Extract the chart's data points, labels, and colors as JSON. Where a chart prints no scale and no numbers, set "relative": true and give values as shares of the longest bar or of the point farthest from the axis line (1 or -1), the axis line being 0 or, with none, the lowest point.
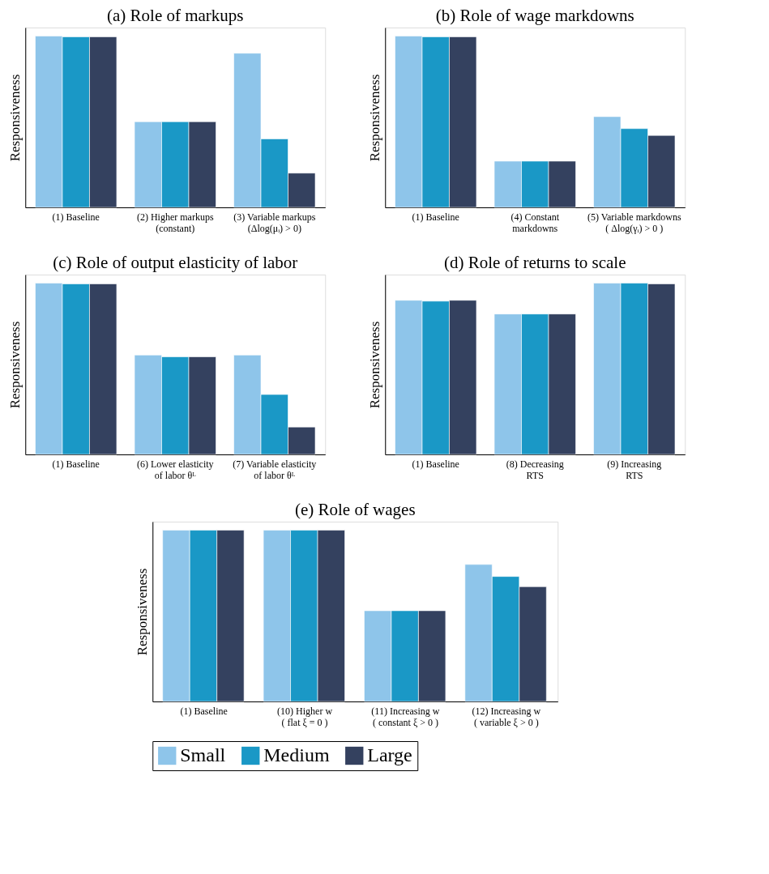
{
  "chart_data": [
    {
      "type": "bar",
      "title": "(a) Role of markups",
      "ylabel": "Responsiveness",
      "relative": true,
      "categories": [
        "(1) Baseline",
        "(2) Higher markups\n(constant)",
        "(3) Variable markups\n(Δlog(μᵢ) > 0)"
      ],
      "series": [
        {
          "color": "#8ec5ea",
          "values": [
            1,
            0.5,
            0.9
          ]
        },
        {
          "color": "#1a98c6",
          "values": [
            0.996,
            0.5,
            0.4
          ]
        },
        {
          "color": "#34415f",
          "values": [
            0.996,
            0.5,
            0.2
          ]
        }
      ]
    },
    {
      "type": "bar",
      "title": "(b) Role of wage markdowns",
      "ylabel": "Responsiveness",
      "relative": true,
      "categories": [
        "(1) Baseline",
        "(4) Constant\nmarkdowns",
        "(5) Variable markdowns\n( Δlog(γᵢ) > 0 )"
      ],
      "series": [
        {
          "color": "#8ec5ea",
          "values": [
            1,
            0.27,
            0.53
          ]
        },
        {
          "color": "#1a98c6",
          "values": [
            0.996,
            0.27,
            0.46
          ]
        },
        {
          "color": "#34415f",
          "values": [
            0.996,
            0.27,
            0.42
          ]
        }
      ]
    },
    {
      "type": "bar",
      "title": "(c) Role of output elasticity of labor",
      "ylabel": "Responsiveness",
      "relative": true,
      "categories": [
        "(1) Baseline",
        "(6) Lower elasticity\nof labor θᴸ",
        "(7) Variable elasticity\nof labor θᴸ"
      ],
      "series": [
        {
          "color": "#8ec5ea",
          "values": [
            1,
            0.58,
            0.58
          ]
        },
        {
          "color": "#1a98c6",
          "values": [
            0.996,
            0.57,
            0.35
          ]
        },
        {
          "color": "#34415f",
          "values": [
            0.996,
            0.57,
            0.16
          ]
        }
      ]
    },
    {
      "type": "bar",
      "title": "(d) Role of returns to scale",
      "ylabel": "Responsiveness",
      "relative": true,
      "categories": [
        "(1) Baseline",
        "(8) Decreasing\nRTS",
        "(9) Increasing\nRTS"
      ],
      "series": [
        {
          "color": "#8ec5ea",
          "values": [
            0.9,
            0.82,
            1
          ]
        },
        {
          "color": "#1a98c6",
          "values": [
            0.895,
            0.82,
            1
          ]
        },
        {
          "color": "#34415f",
          "values": [
            0.9,
            0.82,
            0.996
          ]
        }
      ]
    },
    {
      "type": "bar",
      "title": "(e) Role of wages",
      "ylabel": "Responsiveness",
      "relative": true,
      "legend": "bottom",
      "categories": [
        "(1) Baseline",
        "(10) Higher w\n( flat ξ = 0 )",
        "(11) Increasing w\n( constant ξ > 0 )",
        "(12) Increasing w\n( variable ξ > 0 )"
      ],
      "series": [
        {
          "name": "Small",
          "color": "#8ec5ea",
          "values": [
            1,
            1,
            0.53,
            0.8
          ]
        },
        {
          "name": "Medium",
          "color": "#1a98c6",
          "values": [
            1,
            1,
            0.53,
            0.73
          ]
        },
        {
          "name": "Large",
          "color": "#34415f",
          "values": [
            1,
            1,
            0.53,
            0.67
          ]
        }
      ]
    }
  ]
}
